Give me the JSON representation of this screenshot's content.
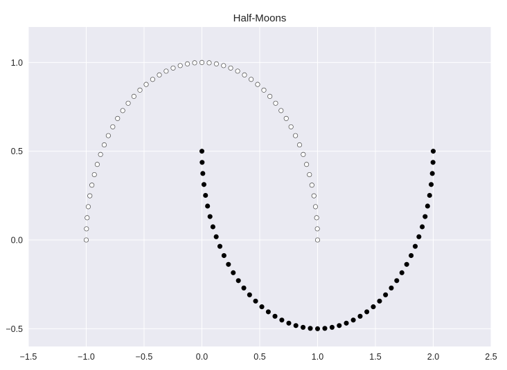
{
  "chart_data": {
    "type": "scatter",
    "title": "Half-Moons",
    "xlabel": "",
    "ylabel": "",
    "xlim": [
      -1.5,
      2.5
    ],
    "ylim": [
      -0.6,
      1.2
    ],
    "xticks": [
      -1.5,
      -1.0,
      -0.5,
      0.0,
      0.5,
      1.0,
      1.5,
      2.0,
      2.5
    ],
    "xtick_labels": [
      "−1.5",
      "−1.0",
      "−0.5",
      "0.0",
      "0.5",
      "1.0",
      "1.5",
      "2.0",
      "2.5"
    ],
    "yticks": [
      -0.5,
      0.0,
      0.5,
      1.0
    ],
    "ytick_labels": [
      "−0.5",
      "0.0",
      "0.5",
      "1.0"
    ],
    "grid": true,
    "legend": "none",
    "series": [
      {
        "marker_face": "#ffffff",
        "marker_edge": "#444444",
        "points": [
          [
            1.0,
            0.0
          ],
          [
            0.998,
            0.0628
          ],
          [
            0.9921,
            0.1253
          ],
          [
            0.9823,
            0.1874
          ],
          [
            0.9686,
            0.2487
          ],
          [
            0.9511,
            0.309
          ],
          [
            0.9298,
            0.3681
          ],
          [
            0.9048,
            0.4258
          ],
          [
            0.8763,
            0.4818
          ],
          [
            0.8443,
            0.5358
          ],
          [
            0.809,
            0.5878
          ],
          [
            0.7705,
            0.6374
          ],
          [
            0.729,
            0.6845
          ],
          [
            0.6845,
            0.729
          ],
          [
            0.6374,
            0.7705
          ],
          [
            0.5878,
            0.809
          ],
          [
            0.5358,
            0.8443
          ],
          [
            0.4818,
            0.8763
          ],
          [
            0.4258,
            0.9048
          ],
          [
            0.3681,
            0.9298
          ],
          [
            0.309,
            0.9511
          ],
          [
            0.2487,
            0.9686
          ],
          [
            0.1874,
            0.9823
          ],
          [
            0.1253,
            0.9921
          ],
          [
            0.0628,
            0.998
          ],
          [
            0.0,
            1.0
          ],
          [
            -0.0628,
            0.998
          ],
          [
            -0.1253,
            0.9921
          ],
          [
            -0.1874,
            0.9823
          ],
          [
            -0.2487,
            0.9686
          ],
          [
            -0.309,
            0.9511
          ],
          [
            -0.3681,
            0.9298
          ],
          [
            -0.4258,
            0.9048
          ],
          [
            -0.4818,
            0.8763
          ],
          [
            -0.5358,
            0.8443
          ],
          [
            -0.5878,
            0.809
          ],
          [
            -0.6374,
            0.7705
          ],
          [
            -0.6845,
            0.729
          ],
          [
            -0.729,
            0.6845
          ],
          [
            -0.7705,
            0.6374
          ],
          [
            -0.809,
            0.5878
          ],
          [
            -0.8443,
            0.5358
          ],
          [
            -0.8763,
            0.4818
          ],
          [
            -0.9048,
            0.4258
          ],
          [
            -0.9298,
            0.3681
          ],
          [
            -0.9511,
            0.309
          ],
          [
            -0.9686,
            0.2487
          ],
          [
            -0.9823,
            0.1874
          ],
          [
            -0.9921,
            0.1253
          ],
          [
            -0.998,
            0.0628
          ],
          [
            -1.0,
            0.0
          ]
        ]
      },
      {
        "marker_face": "#000000",
        "marker_edge": "#000000",
        "points": [
          [
            0.0,
            0.5
          ],
          [
            0.002,
            0.4372
          ],
          [
            0.0079,
            0.3747
          ],
          [
            0.0177,
            0.3126
          ],
          [
            0.0314,
            0.2513
          ],
          [
            0.0489,
            0.191
          ],
          [
            0.0702,
            0.1319
          ],
          [
            0.0952,
            0.0742
          ],
          [
            0.1237,
            0.0182
          ],
          [
            0.1557,
            -0.0358
          ],
          [
            0.191,
            -0.0878
          ],
          [
            0.2295,
            -0.1374
          ],
          [
            0.271,
            -0.1845
          ],
          [
            0.3155,
            -0.229
          ],
          [
            0.3626,
            -0.2705
          ],
          [
            0.4122,
            -0.309
          ],
          [
            0.4642,
            -0.3443
          ],
          [
            0.5182,
            -0.3763
          ],
          [
            0.5742,
            -0.4048
          ],
          [
            0.6319,
            -0.4298
          ],
          [
            0.691,
            -0.4511
          ],
          [
            0.7513,
            -0.4686
          ],
          [
            0.8126,
            -0.4823
          ],
          [
            0.8747,
            -0.4921
          ],
          [
            0.9372,
            -0.498
          ],
          [
            1.0,
            -0.5
          ],
          [
            1.0628,
            -0.498
          ],
          [
            1.1253,
            -0.4921
          ],
          [
            1.1874,
            -0.4823
          ],
          [
            1.2487,
            -0.4686
          ],
          [
            1.309,
            -0.4511
          ],
          [
            1.3681,
            -0.4298
          ],
          [
            1.4258,
            -0.4048
          ],
          [
            1.4818,
            -0.3763
          ],
          [
            1.5358,
            -0.3443
          ],
          [
            1.5878,
            -0.309
          ],
          [
            1.6374,
            -0.2705
          ],
          [
            1.6845,
            -0.229
          ],
          [
            1.729,
            -0.1845
          ],
          [
            1.7705,
            -0.1374
          ],
          [
            1.809,
            -0.0878
          ],
          [
            1.8443,
            -0.0358
          ],
          [
            1.8763,
            0.0182
          ],
          [
            1.9048,
            0.0742
          ],
          [
            1.9298,
            0.1319
          ],
          [
            1.9511,
            0.191
          ],
          [
            1.9686,
            0.2513
          ],
          [
            1.9823,
            0.3126
          ],
          [
            1.9921,
            0.3747
          ],
          [
            1.998,
            0.4372
          ],
          [
            2.0,
            0.5
          ]
        ]
      }
    ]
  },
  "colors": {
    "plot_background": "#eaeaf2",
    "grid": "#ffffff",
    "text": "#222222"
  }
}
